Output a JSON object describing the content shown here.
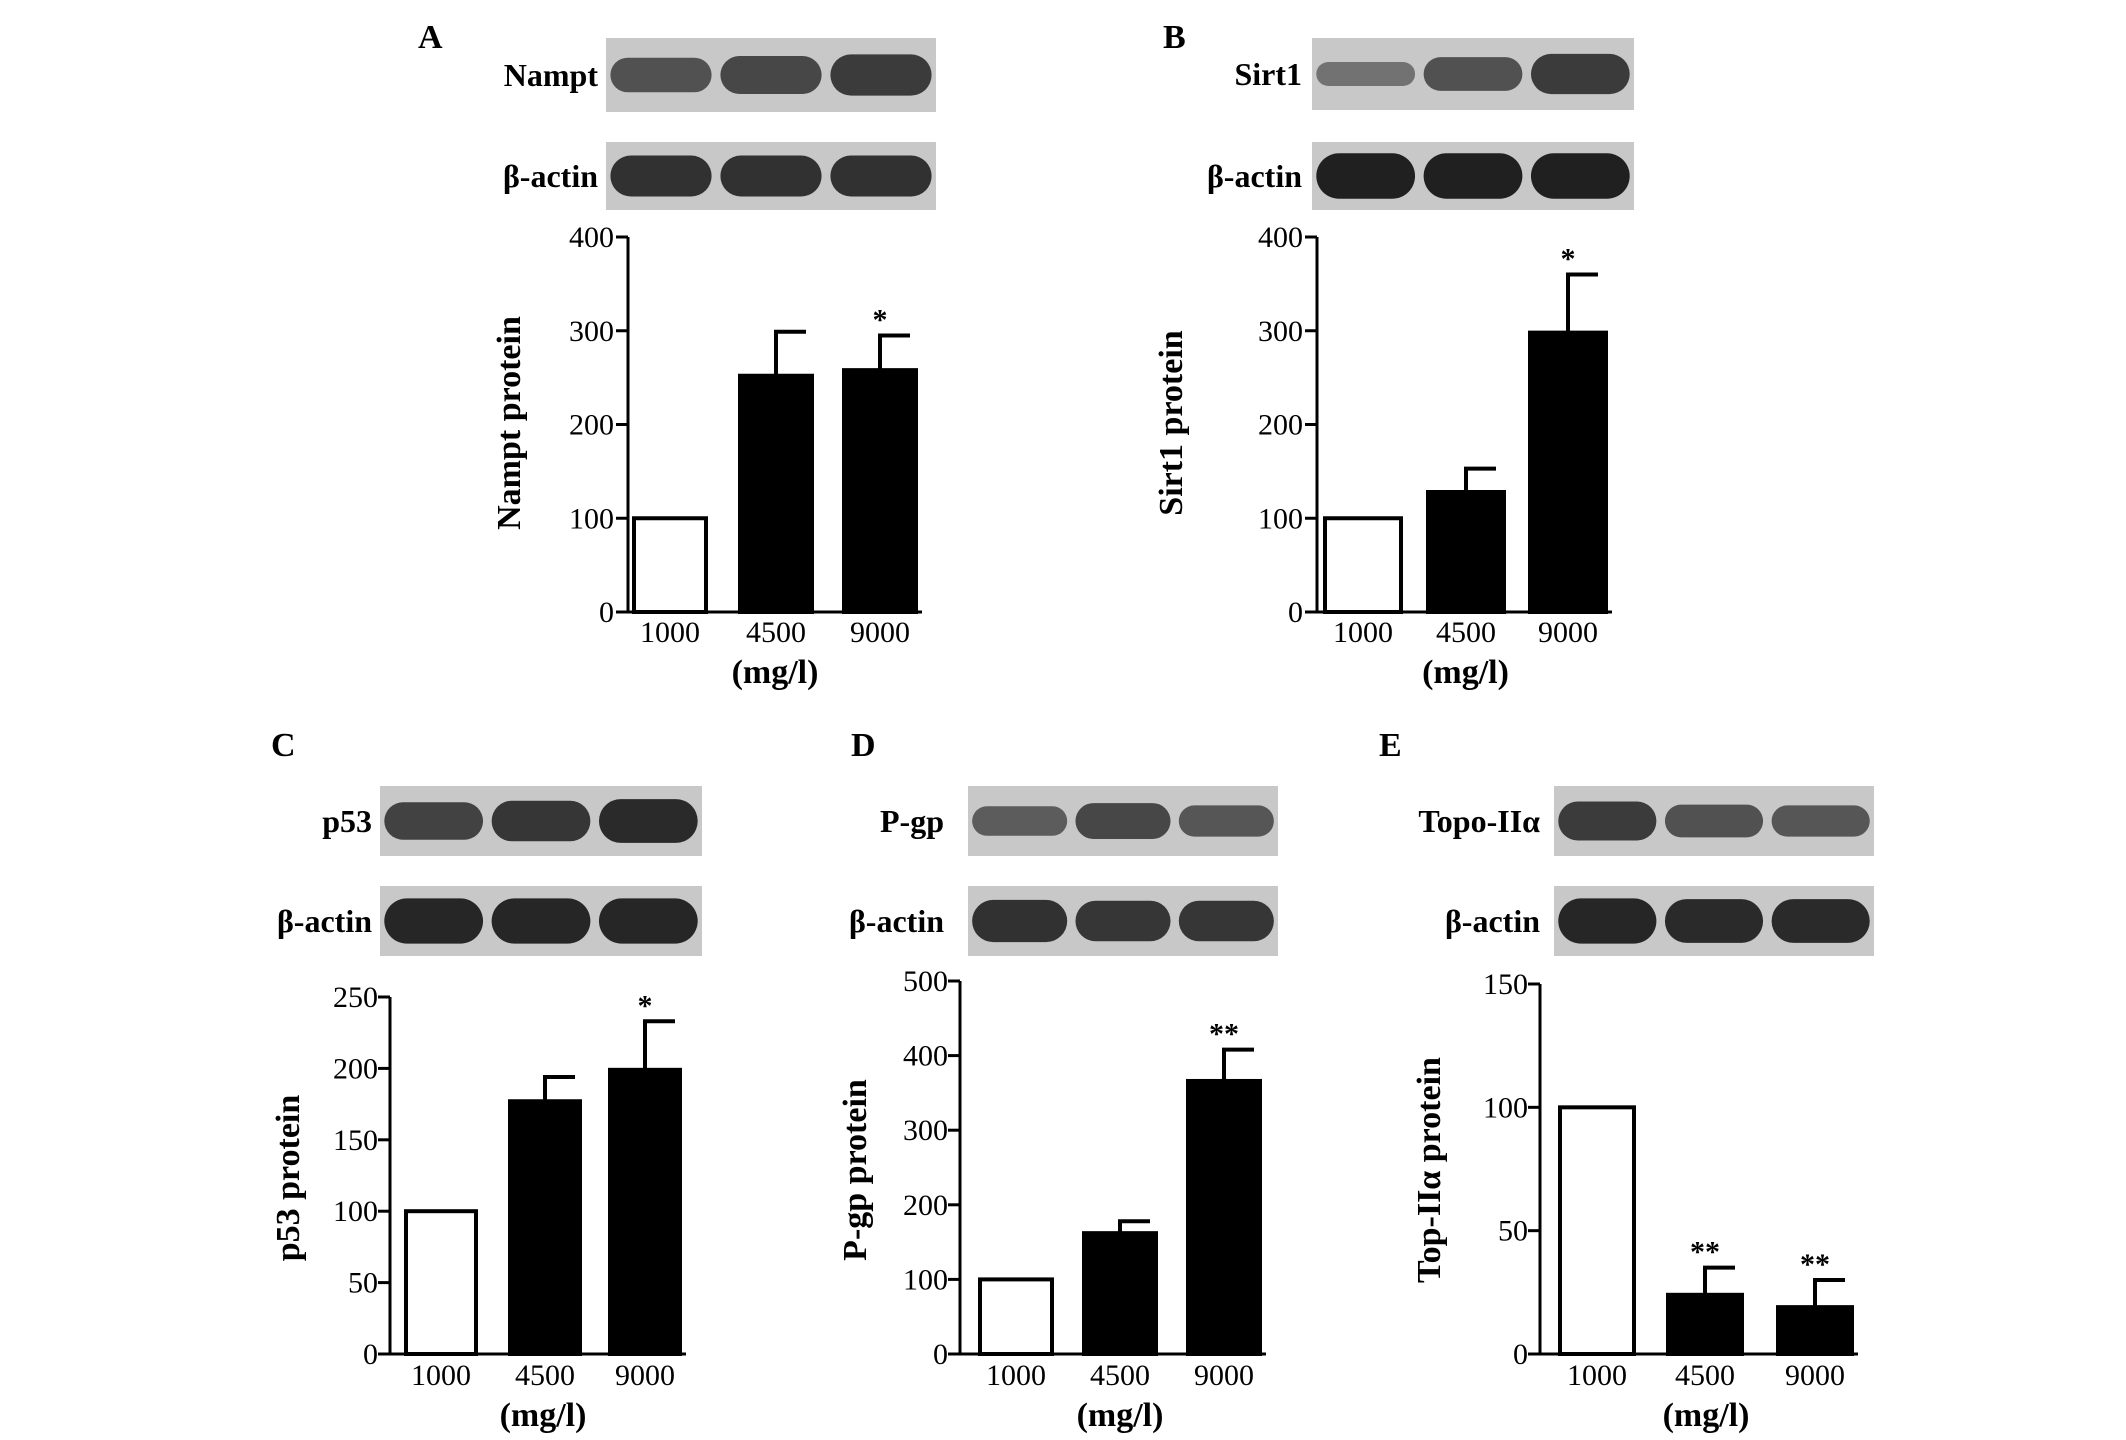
{
  "colors": {
    "control_bar": "#ffffff",
    "treated_bar": "#000000",
    "axis": "#000000",
    "blot_bg": "#c8c8c8",
    "band": "#202020"
  },
  "chart_data": [
    {
      "id": "A",
      "type": "bar",
      "panel_letter": "A",
      "blot_labels": [
        "Nampt",
        "β-actin"
      ],
      "band_intensity": [
        [
          0.55,
          0.65,
          0.75
        ],
        [
          0.85,
          0.85,
          0.85
        ]
      ],
      "categories": [
        "1000",
        "4500",
        "9000"
      ],
      "values": [
        100,
        252,
        258
      ],
      "errors": [
        0,
        47,
        37
      ],
      "significance": [
        "",
        "",
        "*"
      ],
      "ylabel": "Nampt protein",
      "xlabel": "(mg/l)",
      "ylim": [
        0,
        400
      ],
      "yticks": [
        0,
        100,
        200,
        300,
        400
      ]
    },
    {
      "id": "B",
      "type": "bar",
      "panel_letter": "B",
      "blot_labels": [
        "Sirt1",
        "β-actin"
      ],
      "band_intensity": [
        [
          0.25,
          0.55,
          0.75
        ],
        [
          1.0,
          1.0,
          1.0
        ]
      ],
      "categories": [
        "1000",
        "4500",
        "9000"
      ],
      "values": [
        100,
        128,
        298
      ],
      "errors": [
        0,
        25,
        62
      ],
      "significance": [
        "",
        "",
        "*"
      ],
      "ylabel": "Sirt1 protein",
      "xlabel": "(mg/l)",
      "ylim": [
        0,
        400
      ],
      "yticks": [
        0,
        100,
        200,
        300,
        400
      ]
    },
    {
      "id": "C",
      "type": "bar",
      "panel_letter": "C",
      "blot_labels": [
        "p53",
        "β-actin"
      ],
      "band_intensity": [
        [
          0.7,
          0.8,
          0.9
        ],
        [
          0.95,
          0.95,
          0.95
        ]
      ],
      "categories": [
        "1000",
        "4500",
        "9000"
      ],
      "values": [
        100,
        177,
        199
      ],
      "errors": [
        0,
        17,
        34
      ],
      "significance": [
        "",
        "",
        "*"
      ],
      "ylabel": "p53 protein",
      "xlabel": "(mg/l)",
      "ylim": [
        0,
        250
      ],
      "yticks": [
        0,
        50,
        100,
        150,
        200,
        250
      ]
    },
    {
      "id": "D",
      "type": "bar",
      "panel_letter": "D",
      "blot_labels": [
        "P-gp",
        "β-actin"
      ],
      "band_intensity": [
        [
          0.45,
          0.65,
          0.5
        ],
        [
          0.85,
          0.8,
          0.8
        ]
      ],
      "categories": [
        "1000",
        "4500",
        "9000"
      ],
      "values": [
        100,
        162,
        366
      ],
      "errors": [
        0,
        16,
        42
      ],
      "significance": [
        "",
        "",
        "**"
      ],
      "ylabel": "P-gp protein",
      "xlabel": "(mg/l)",
      "ylim": [
        0,
        500
      ],
      "yticks": [
        0,
        100,
        200,
        300,
        400,
        500
      ]
    },
    {
      "id": "E",
      "type": "bar",
      "panel_letter": "E",
      "blot_labels": [
        "Topo-IIα",
        "β-actin"
      ],
      "band_intensity": [
        [
          0.75,
          0.55,
          0.5
        ],
        [
          0.95,
          0.9,
          0.9
        ]
      ],
      "categories": [
        "1000",
        "4500",
        "9000"
      ],
      "values": [
        100,
        24,
        19
      ],
      "errors": [
        0,
        11,
        11
      ],
      "significance": [
        "",
        "**",
        "**"
      ],
      "ylabel": "Top-IIα protein",
      "xlabel": "(mg/l)",
      "ylim": [
        0,
        150
      ],
      "yticks": [
        0,
        50,
        100,
        150
      ]
    }
  ]
}
